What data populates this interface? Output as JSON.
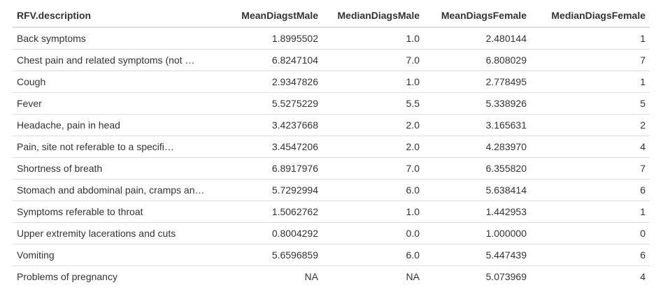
{
  "table": {
    "columns": [
      {
        "label": "RFV.description",
        "align": "left"
      },
      {
        "label": "MeanDiagstMale",
        "align": "right"
      },
      {
        "label": "MedianDiagsMale",
        "align": "right"
      },
      {
        "label": "MeanDiagsFemale",
        "align": "right"
      },
      {
        "label": "MedianDiagsFemale",
        "align": "right"
      }
    ],
    "rows": [
      [
        "Back symptoms",
        "1.8995502",
        "1.0",
        "2.480144",
        "1"
      ],
      [
        "Chest pain and related symptoms (not …",
        "6.8247104",
        "7.0",
        "6.808029",
        "7"
      ],
      [
        "Cough",
        "2.9347826",
        "1.0",
        "2.778495",
        "1"
      ],
      [
        "Fever",
        "5.5275229",
        "5.5",
        "5.338926",
        "5"
      ],
      [
        "Headache, pain in head",
        "3.4237668",
        "2.0",
        "3.165631",
        "2"
      ],
      [
        "Pain, site not referable to a specifi…",
        "3.4547206",
        "2.0",
        "4.283970",
        "4"
      ],
      [
        "Shortness of breath",
        "6.8917976",
        "7.0",
        "6.355820",
        "7"
      ],
      [
        "Stomach and abdominal pain, cramps an…",
        "5.7292994",
        "6.0",
        "5.638414",
        "6"
      ],
      [
        "Symptoms referable to throat",
        "1.5062762",
        "1.0",
        "1.442953",
        "1"
      ],
      [
        "Upper extremity lacerations and cuts",
        "0.8004292",
        "0.0",
        "1.000000",
        "0"
      ],
      [
        "Vomiting",
        "5.6596859",
        "6.0",
        "5.447439",
        "6"
      ],
      [
        "Problems of pregnancy",
        "NA",
        "NA",
        "5.073969",
        "4"
      ]
    ]
  },
  "colors": {
    "text": "#333333",
    "border": "#dddddd",
    "background": "#ffffff"
  }
}
